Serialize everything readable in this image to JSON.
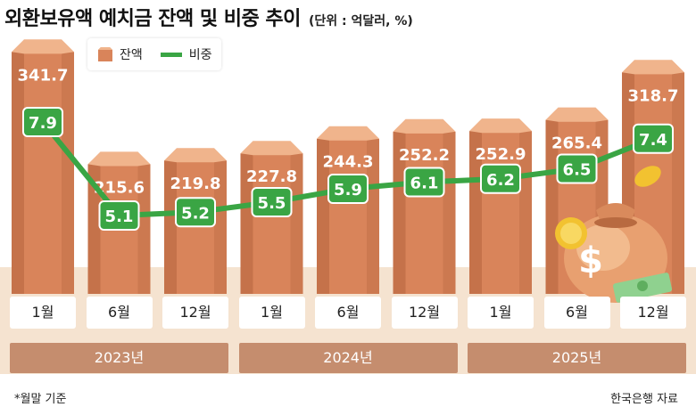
{
  "title": "외환보유액 예치금 잔액 및 비중 추이",
  "unit_note": "(단위 : 억달러, %)",
  "legend": {
    "bar_label": "잔액",
    "line_label": "비중"
  },
  "colors": {
    "bar": "#d9845a",
    "bar_dark": "#b4653e",
    "bar_top": "#f0b48c",
    "line": "#3aa544",
    "band": "#f5e3d0",
    "year_band": "#c58d6e"
  },
  "footnote": "*월말 기준",
  "source": "한국은행 자료",
  "icons": [
    "money-bag-icon",
    "coin-icon",
    "banknote-icon"
  ],
  "chart_data": {
    "type": "bar",
    "categories": [
      "1월",
      "6월",
      "12월",
      "1월",
      "6월",
      "12월",
      "1월",
      "6월",
      "12월"
    ],
    "years": [
      "2023년",
      "2024년",
      "2025년"
    ],
    "series": [
      {
        "name": "잔액",
        "type": "bar",
        "values": [
          341.7,
          215.6,
          219.8,
          227.8,
          244.3,
          252.2,
          252.9,
          265.4,
          318.7
        ]
      },
      {
        "name": "비중",
        "type": "line",
        "values": [
          7.9,
          5.1,
          5.2,
          5.5,
          5.9,
          6.1,
          6.2,
          6.5,
          7.4
        ]
      }
    ]
  }
}
